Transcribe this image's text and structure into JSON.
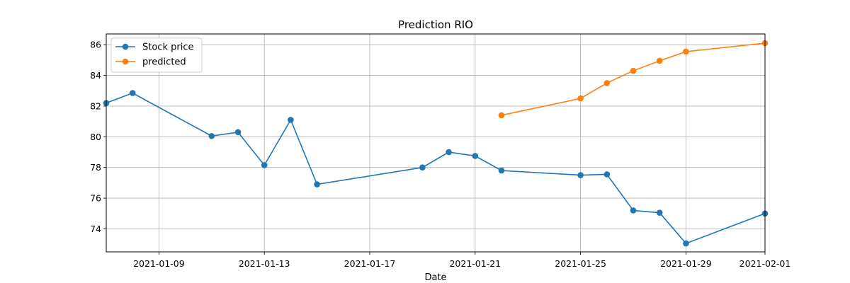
{
  "chart_data": {
    "type": "line",
    "title": "Prediction RIO",
    "xlabel": "Date",
    "ylabel": "",
    "grid": true,
    "legend_position": "top-left",
    "xlim": [
      "2021-01-07",
      "2021-02-01"
    ],
    "ylim": [
      72.5,
      86.7
    ],
    "x_ticks": [
      "2021-01-09",
      "2021-01-13",
      "2021-01-17",
      "2021-01-21",
      "2021-01-25",
      "2021-01-29",
      "2021-02-01"
    ],
    "y_ticks": [
      74,
      76,
      78,
      80,
      82,
      84,
      86
    ],
    "series": [
      {
        "name": "Stock price",
        "color": "#1f77b4",
        "x": [
          "2021-01-07",
          "2021-01-08",
          "2021-01-11",
          "2021-01-12",
          "2021-01-13",
          "2021-01-14",
          "2021-01-15",
          "2021-01-19",
          "2021-01-20",
          "2021-01-21",
          "2021-01-22",
          "2021-01-25",
          "2021-01-26",
          "2021-01-27",
          "2021-01-28",
          "2021-01-29",
          "2021-02-01"
        ],
        "y": [
          82.2,
          82.85,
          80.05,
          80.3,
          78.15,
          81.1,
          76.9,
          78.0,
          79.0,
          78.75,
          77.8,
          77.5,
          77.55,
          75.2,
          75.05,
          73.05,
          75.0
        ]
      },
      {
        "name": "predicted",
        "color": "#ff7f0e",
        "x": [
          "2021-01-22",
          "2021-01-25",
          "2021-01-26",
          "2021-01-27",
          "2021-01-28",
          "2021-01-29",
          "2021-02-01"
        ],
        "y": [
          81.4,
          82.5,
          83.5,
          84.3,
          84.95,
          85.55,
          86.1
        ]
      }
    ]
  }
}
